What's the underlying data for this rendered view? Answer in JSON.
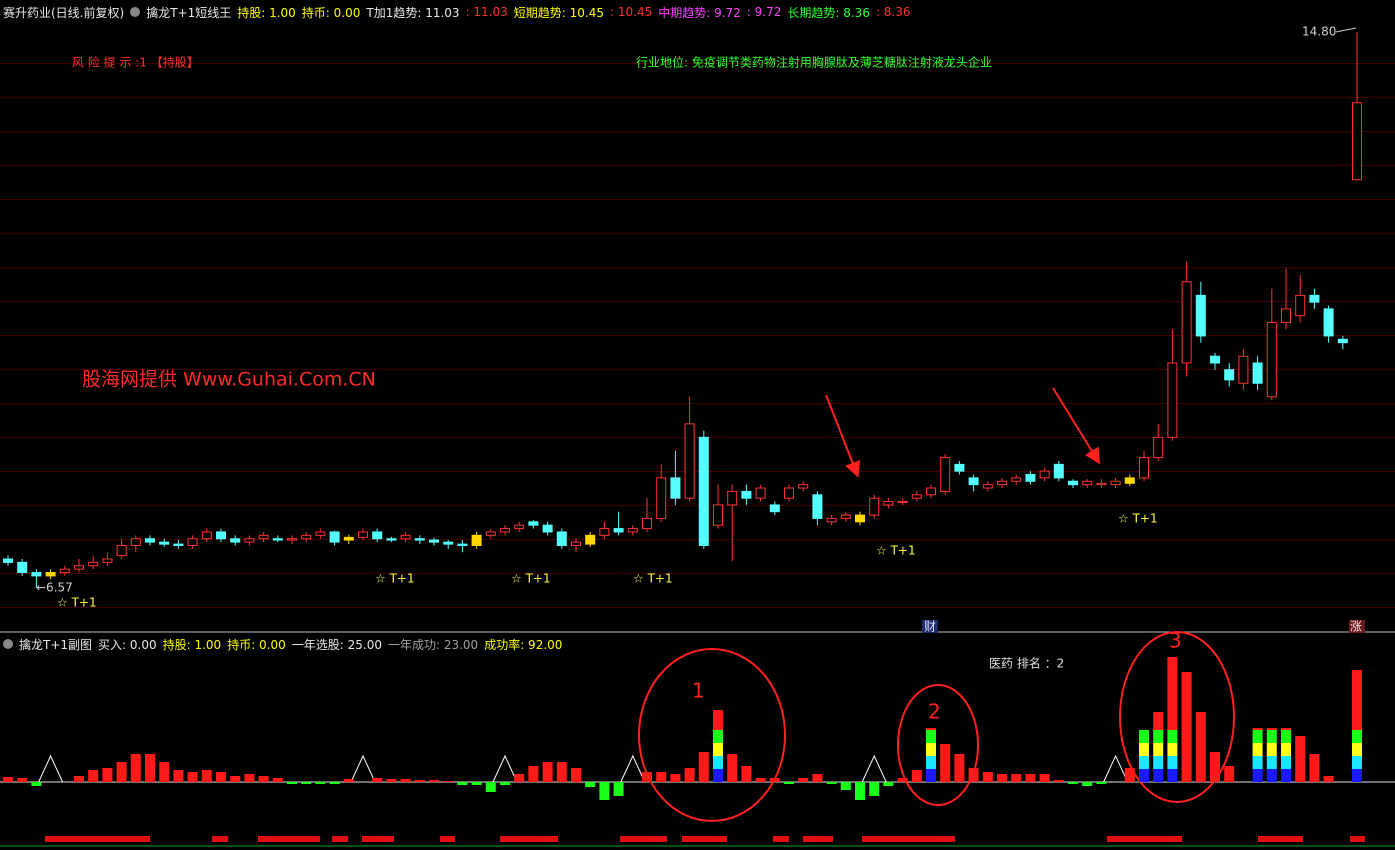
{
  "header": {
    "items": [
      "赛升药业(日线.前复权)",
      "擒龙T+1短线王",
      "持股: 1.00",
      "持币: 0.00",
      "T加1趋势: 11.03",
      ": 11.03",
      "短期趋势: 10.45",
      ": 10.45",
      "中期趋势: 9.72",
      ": 9.72",
      "长期趋势: 8.36",
      ": 8.36"
    ]
  },
  "main": {
    "risk_note": "风 险 提 示 :1 【持股】",
    "industry": "行业地位: 免疫调节类药物注射用胸腺肽及薄芝糖肽注射液龙头企业",
    "watermark": "股海网提供 Www.Guhai.Com.CN",
    "price_high_label": "14.80",
    "price_low_label": "←6.57",
    "signal_labels": [
      "☆ T+1",
      "☆ T+1",
      "☆ T+1",
      "☆ T+1",
      "☆ T+1",
      "☆ T+1"
    ],
    "badges": [
      "财",
      "涨"
    ]
  },
  "sub_header": {
    "items": [
      "擒龙T+1副图",
      "买入: 0.00",
      "持股: 1.00",
      "持币: 0.00",
      "一年选股: 25.00",
      "一年成功: 23.00",
      "成功率: 92.00"
    ]
  },
  "sub": {
    "rank": "医药 排名 ：2",
    "circle_labels": [
      "1",
      "2",
      "3"
    ]
  },
  "chart_data": [
    {
      "type": "candlestick",
      "ylim": [
        5.92,
        15.27
      ],
      "up_color": "#ff3232",
      "down_color": "#54ffff",
      "signal_color": "#ffd800",
      "signals": [
        3,
        24,
        33,
        41,
        60,
        79
      ],
      "candles": [
        [
          7.0,
          6.95,
          6.9,
          7.05
        ],
        [
          6.95,
          6.8,
          6.75,
          7.0
        ],
        [
          6.8,
          6.75,
          6.57,
          6.85
        ],
        [
          6.75,
          6.8,
          6.7,
          6.85
        ],
        [
          6.8,
          6.85,
          6.75,
          6.9
        ],
        [
          6.85,
          6.9,
          6.8,
          7.0
        ],
        [
          6.9,
          6.95,
          6.85,
          7.05
        ],
        [
          6.95,
          7.0,
          6.9,
          7.1
        ],
        [
          7.05,
          7.2,
          7.0,
          7.3
        ],
        [
          7.2,
          7.3,
          7.1,
          7.35
        ],
        [
          7.3,
          7.25,
          7.2,
          7.35
        ],
        [
          7.25,
          7.22,
          7.18,
          7.3
        ],
        [
          7.22,
          7.2,
          7.15,
          7.28
        ],
        [
          7.2,
          7.3,
          7.15,
          7.35
        ],
        [
          7.3,
          7.4,
          7.25,
          7.45
        ],
        [
          7.4,
          7.3,
          7.25,
          7.45
        ],
        [
          7.3,
          7.25,
          7.2,
          7.35
        ],
        [
          7.25,
          7.3,
          7.2,
          7.35
        ],
        [
          7.3,
          7.35,
          7.25,
          7.4
        ],
        [
          7.3,
          7.28,
          7.25,
          7.35
        ],
        [
          7.28,
          7.3,
          7.22,
          7.35
        ],
        [
          7.3,
          7.35,
          7.25,
          7.4
        ],
        [
          7.35,
          7.4,
          7.3,
          7.45
        ],
        [
          7.4,
          7.25,
          7.2,
          7.42
        ],
        [
          7.28,
          7.32,
          7.22,
          7.36
        ],
        [
          7.32,
          7.4,
          7.28,
          7.45
        ],
        [
          7.4,
          7.3,
          7.25,
          7.45
        ],
        [
          7.3,
          7.28,
          7.25,
          7.33
        ],
        [
          7.3,
          7.35,
          7.25,
          7.4
        ],
        [
          7.3,
          7.28,
          7.22,
          7.35
        ],
        [
          7.28,
          7.25,
          7.2,
          7.32
        ],
        [
          7.25,
          7.22,
          7.15,
          7.28
        ],
        [
          7.22,
          7.2,
          7.1,
          7.28
        ],
        [
          7.2,
          7.35,
          7.15,
          7.4
        ],
        [
          7.35,
          7.4,
          7.3,
          7.45
        ],
        [
          7.4,
          7.45,
          7.35,
          7.5
        ],
        [
          7.45,
          7.5,
          7.4,
          7.55
        ],
        [
          7.55,
          7.5,
          7.45,
          7.58
        ],
        [
          7.5,
          7.4,
          7.35,
          7.55
        ],
        [
          7.4,
          7.2,
          7.15,
          7.45
        ],
        [
          7.2,
          7.25,
          7.1,
          7.3
        ],
        [
          7.22,
          7.35,
          7.18,
          7.4
        ],
        [
          7.35,
          7.45,
          7.3,
          7.55
        ],
        [
          7.45,
          7.4,
          7.35,
          7.7
        ],
        [
          7.4,
          7.45,
          7.35,
          7.5
        ],
        [
          7.45,
          7.6,
          7.4,
          7.9
        ],
        [
          7.6,
          8.2,
          7.55,
          8.4
        ],
        [
          8.2,
          7.9,
          7.8,
          8.6
        ],
        [
          7.9,
          9.0,
          7.85,
          9.4
        ],
        [
          8.8,
          7.2,
          7.15,
          8.9
        ],
        [
          7.5,
          7.8,
          7.45,
          8.1
        ],
        [
          7.8,
          8.0,
          6.97,
          8.1
        ],
        [
          8.0,
          7.9,
          7.8,
          8.1
        ],
        [
          7.9,
          8.05,
          7.85,
          8.1
        ],
        [
          7.8,
          7.7,
          7.65,
          7.85
        ],
        [
          7.9,
          8.05,
          7.85,
          8.1
        ],
        [
          8.05,
          8.1,
          8.0,
          8.15
        ],
        [
          7.95,
          7.6,
          7.5,
          8.0
        ],
        [
          7.55,
          7.6,
          7.5,
          7.65
        ],
        [
          7.6,
          7.65,
          7.55,
          7.7
        ],
        [
          7.55,
          7.65,
          7.5,
          7.7
        ],
        [
          7.65,
          7.9,
          7.6,
          7.95
        ],
        [
          7.8,
          7.85,
          7.75,
          7.9
        ],
        [
          7.85,
          7.85,
          7.8,
          7.9
        ],
        [
          7.9,
          7.95,
          7.85,
          8.0
        ],
        [
          7.95,
          8.05,
          7.9,
          8.1
        ],
        [
          8.0,
          8.5,
          7.95,
          8.55
        ],
        [
          8.4,
          8.3,
          8.25,
          8.45
        ],
        [
          8.2,
          8.1,
          8.0,
          8.25
        ],
        [
          8.05,
          8.1,
          8.0,
          8.15
        ],
        [
          8.1,
          8.15,
          8.05,
          8.2
        ],
        [
          8.15,
          8.2,
          8.1,
          8.25
        ],
        [
          8.25,
          8.15,
          8.1,
          8.3
        ],
        [
          8.2,
          8.3,
          8.15,
          8.35
        ],
        [
          8.4,
          8.2,
          8.15,
          8.45
        ],
        [
          8.15,
          8.1,
          8.05,
          8.18
        ],
        [
          8.1,
          8.15,
          8.05,
          8.18
        ],
        [
          8.1,
          8.12,
          8.05,
          8.18
        ],
        [
          8.1,
          8.15,
          8.05,
          8.2
        ],
        [
          8.12,
          8.2,
          8.08,
          8.25
        ],
        [
          8.2,
          8.5,
          8.15,
          8.6
        ],
        [
          8.5,
          8.8,
          8.45,
          9.0
        ],
        [
          8.8,
          9.9,
          8.75,
          10.4
        ],
        [
          9.9,
          11.1,
          9.7,
          11.4
        ],
        [
          10.9,
          10.3,
          10.2,
          11.1
        ],
        [
          10.0,
          9.9,
          9.8,
          10.05
        ],
        [
          9.8,
          9.65,
          9.55,
          9.9
        ],
        [
          9.6,
          10.0,
          9.5,
          10.1
        ],
        [
          9.9,
          9.6,
          9.5,
          10.0
        ],
        [
          9.4,
          10.5,
          9.35,
          11.0
        ],
        [
          10.5,
          10.7,
          10.4,
          11.3
        ],
        [
          10.6,
          10.9,
          10.5,
          11.2
        ],
        [
          10.9,
          10.8,
          10.7,
          11.0
        ],
        [
          10.7,
          10.3,
          10.2,
          10.75
        ],
        [
          10.25,
          10.2,
          10.1,
          10.3
        ],
        [
          12.61,
          13.75,
          12.61,
          14.8
        ]
      ]
    },
    {
      "type": "bar",
      "pos_color": "#ff1a1a",
      "neg_color": "#1aff1a",
      "values": [
        5,
        4,
        -4,
        0,
        0,
        6,
        12,
        14,
        20,
        28,
        28,
        20,
        12,
        10,
        12,
        10,
        6,
        8,
        6,
        4,
        -2,
        -2,
        -2,
        -2,
        3,
        0,
        4,
        3,
        3,
        2,
        2,
        1,
        -3,
        -3,
        -10,
        -3,
        8,
        16,
        20,
        20,
        14,
        -5,
        -18,
        -14,
        0,
        10,
        10,
        8,
        14,
        30,
        20,
        28,
        16,
        4,
        4,
        -2,
        4,
        8,
        -2,
        -8,
        -18,
        -14,
        -4,
        4,
        12,
        2,
        38,
        28,
        14,
        10,
        8,
        8,
        8,
        8,
        2,
        -2,
        -4,
        -2,
        0,
        14,
        0,
        18,
        73,
        110,
        70,
        30,
        16,
        0,
        2,
        2,
        2,
        46,
        28,
        6,
        0,
        60
      ],
      "series": [
        {
          "name": "blue",
          "color": "#1a1aff",
          "values": [
            null,
            null,
            null,
            null,
            null,
            null,
            null,
            null,
            null,
            null,
            null,
            null,
            null,
            null,
            null,
            null,
            null,
            null,
            null,
            null,
            null,
            null,
            null,
            null,
            null,
            null,
            null,
            null,
            null,
            null,
            null,
            null,
            null,
            null,
            null,
            null,
            null,
            null,
            null,
            null,
            null,
            null,
            null,
            null,
            null,
            null,
            null,
            null,
            null,
            null,
            13,
            null,
            null,
            null,
            null,
            null,
            null,
            null,
            null,
            null,
            null,
            null,
            null,
            null,
            null,
            13,
            null,
            null,
            null,
            null,
            null,
            null,
            null,
            null,
            null,
            null,
            null,
            null,
            null,
            null,
            13,
            13,
            13,
            null,
            null,
            null,
            null,
            null,
            13,
            13,
            13,
            null,
            null,
            null,
            null,
            13
          ]
        },
        {
          "name": "cyan",
          "color": "#1ae6ff",
          "values": [
            null,
            null,
            null,
            null,
            null,
            null,
            null,
            null,
            null,
            null,
            null,
            null,
            null,
            null,
            null,
            null,
            null,
            null,
            null,
            null,
            null,
            null,
            null,
            null,
            null,
            null,
            null,
            null,
            null,
            null,
            null,
            null,
            null,
            null,
            null,
            null,
            null,
            null,
            null,
            null,
            null,
            null,
            null,
            null,
            null,
            null,
            null,
            null,
            null,
            null,
            13,
            null,
            null,
            null,
            null,
            null,
            null,
            null,
            null,
            null,
            null,
            null,
            null,
            null,
            null,
            13,
            null,
            null,
            null,
            null,
            null,
            null,
            null,
            null,
            null,
            null,
            null,
            null,
            null,
            null,
            13,
            13,
            13,
            null,
            null,
            null,
            null,
            null,
            13,
            13,
            13,
            null,
            null,
            null,
            null,
            13
          ]
        },
        {
          "name": "yellow",
          "color": "#ffff1a",
          "values": [
            null,
            null,
            null,
            null,
            null,
            null,
            null,
            null,
            null,
            null,
            null,
            null,
            null,
            null,
            null,
            null,
            null,
            null,
            null,
            null,
            null,
            null,
            null,
            null,
            null,
            null,
            null,
            null,
            null,
            null,
            null,
            null,
            null,
            null,
            null,
            null,
            null,
            null,
            null,
            null,
            null,
            null,
            null,
            null,
            null,
            null,
            null,
            null,
            null,
            null,
            13,
            null,
            null,
            null,
            null,
            null,
            null,
            null,
            null,
            null,
            null,
            null,
            null,
            null,
            null,
            13,
            null,
            null,
            null,
            null,
            null,
            null,
            null,
            null,
            null,
            null,
            null,
            null,
            null,
            null,
            13,
            13,
            13,
            null,
            null,
            null,
            null,
            null,
            13,
            13,
            13,
            null,
            null,
            null,
            null,
            13
          ]
        },
        {
          "name": "green",
          "color": "#1aff1a",
          "values": [
            null,
            null,
            null,
            null,
            null,
            null,
            null,
            null,
            null,
            null,
            null,
            null,
            null,
            null,
            null,
            null,
            null,
            null,
            null,
            null,
            null,
            null,
            null,
            null,
            null,
            null,
            null,
            null,
            null,
            null,
            null,
            null,
            null,
            null,
            null,
            null,
            null,
            null,
            null,
            null,
            null,
            null,
            null,
            null,
            null,
            null,
            null,
            null,
            null,
            null,
            13,
            null,
            null,
            null,
            null,
            null,
            null,
            null,
            null,
            null,
            null,
            null,
            null,
            null,
            null,
            13,
            null,
            null,
            null,
            null,
            null,
            null,
            null,
            null,
            null,
            null,
            null,
            null,
            null,
            null,
            13,
            13,
            13,
            null,
            null,
            null,
            null,
            null,
            13,
            13,
            13,
            null,
            null,
            null,
            null,
            13
          ]
        }
      ]
    }
  ]
}
